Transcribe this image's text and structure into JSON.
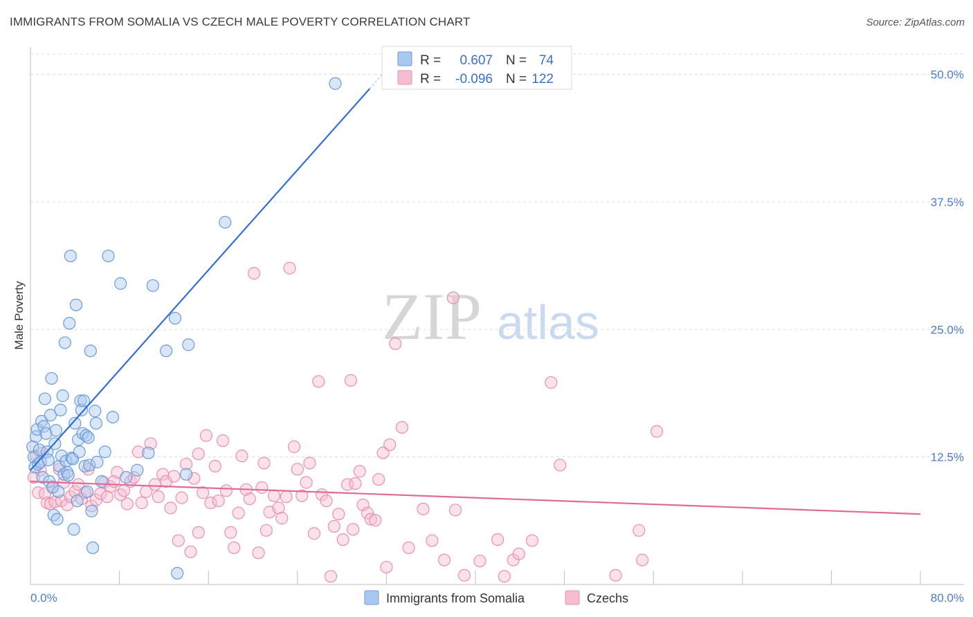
{
  "header": {
    "title": "IMMIGRANTS FROM SOMALIA VS CZECH MALE POVERTY CORRELATION CHART",
    "source": "Source: ZipAtlas.com"
  },
  "watermark": {
    "zip": "ZIP",
    "atlas": "atlas"
  },
  "colors": {
    "somalia_fill": "#a9c8ef",
    "somalia_stroke": "#6a9bd8",
    "somalia_line": "#2f6fd0",
    "czech_fill": "#f6bcd0",
    "czech_stroke": "#e890ae",
    "czech_line": "#e06a97",
    "tick_blue": "#4a7cc9",
    "grid": "#dddddd"
  },
  "legend": {
    "rows": [
      {
        "r_label": "R =",
        "r_value": "0.607",
        "n_label": "N =",
        "n_value": "74"
      },
      {
        "r_label": "R =",
        "r_value": "-0.096",
        "n_label": "N =",
        "n_value": "122"
      }
    ]
  },
  "chart_data": {
    "type": "scatter",
    "title": "IMMIGRANTS FROM SOMALIA VS CZECH MALE POVERTY CORRELATION CHART",
    "xlabel": "",
    "ylabel": "Male Poverty",
    "xlim": [
      0,
      80
    ],
    "ylim": [
      0,
      52
    ],
    "x_tick_labels": [
      "0.0%",
      "80.0%"
    ],
    "y_ticks": [
      12.5,
      25.0,
      37.5,
      50.0
    ],
    "y_tick_labels": [
      "12.5%",
      "25.0%",
      "37.5%",
      "50.0%"
    ],
    "grid": "horizontal dashed",
    "legend_position": "top-center",
    "series": [
      {
        "name": "Immigrants from Somalia",
        "r": 0.607,
        "n": 74,
        "trend": {
          "x": [
            0,
            30.5
          ],
          "y": [
            11.2,
            48.6
          ]
        },
        "points": [
          [
            0.2,
            13.5
          ],
          [
            0.3,
            12.5
          ],
          [
            0.4,
            11.5
          ],
          [
            0.5,
            14.5
          ],
          [
            0.6,
            15.2
          ],
          [
            0.7,
            11.8
          ],
          [
            0.8,
            13.2
          ],
          [
            0.9,
            12.0
          ],
          [
            1.0,
            16.0
          ],
          [
            1.1,
            10.5
          ],
          [
            1.2,
            15.5
          ],
          [
            1.3,
            18.2
          ],
          [
            1.4,
            14.8
          ],
          [
            1.5,
            13.0
          ],
          [
            1.6,
            12.2
          ],
          [
            1.7,
            10.1
          ],
          [
            1.8,
            16.6
          ],
          [
            1.9,
            20.2
          ],
          [
            2.0,
            9.5
          ],
          [
            2.1,
            6.8
          ],
          [
            2.2,
            13.8
          ],
          [
            2.3,
            15.1
          ],
          [
            2.4,
            6.4
          ],
          [
            2.5,
            9.1
          ],
          [
            2.6,
            11.6
          ],
          [
            2.7,
            17.1
          ],
          [
            2.8,
            12.6
          ],
          [
            2.9,
            18.5
          ],
          [
            3.0,
            10.8
          ],
          [
            3.1,
            23.7
          ],
          [
            3.2,
            12.1
          ],
          [
            3.3,
            11.0
          ],
          [
            3.4,
            10.7
          ],
          [
            3.5,
            25.6
          ],
          [
            3.6,
            32.2
          ],
          [
            3.7,
            12.4
          ],
          [
            3.8,
            12.3
          ],
          [
            3.9,
            5.4
          ],
          [
            4.0,
            15.8
          ],
          [
            4.1,
            27.4
          ],
          [
            4.2,
            8.2
          ],
          [
            4.3,
            14.2
          ],
          [
            4.4,
            13.0
          ],
          [
            4.5,
            18.0
          ],
          [
            4.6,
            17.1
          ],
          [
            4.7,
            14.8
          ],
          [
            4.8,
            18.0
          ],
          [
            4.9,
            11.6
          ],
          [
            5.0,
            14.6
          ],
          [
            5.1,
            9.1
          ],
          [
            5.2,
            14.4
          ],
          [
            5.3,
            11.7
          ],
          [
            5.4,
            22.9
          ],
          [
            5.5,
            7.2
          ],
          [
            5.6,
            3.6
          ],
          [
            5.8,
            17.0
          ],
          [
            5.9,
            15.8
          ],
          [
            6.0,
            12.0
          ],
          [
            6.4,
            10.1
          ],
          [
            7.0,
            32.2
          ],
          [
            7.4,
            16.4
          ],
          [
            8.1,
            29.5
          ],
          [
            8.6,
            10.5
          ],
          [
            10.6,
            12.9
          ],
          [
            11.0,
            29.3
          ],
          [
            12.2,
            22.9
          ],
          [
            13.0,
            26.1
          ],
          [
            13.2,
            1.1
          ],
          [
            14.2,
            23.5
          ],
          [
            14.0,
            10.8
          ],
          [
            17.5,
            35.5
          ],
          [
            27.4,
            49.1
          ],
          [
            9.6,
            11.2
          ],
          [
            6.7,
            13.0
          ]
        ]
      },
      {
        "name": "Czechs",
        "r": -0.096,
        "n": 122,
        "trend": {
          "x": [
            0,
            80
          ],
          "y": [
            10.1,
            6.9
          ]
        },
        "points": [
          [
            0.3,
            10.5
          ],
          [
            0.5,
            12.6
          ],
          [
            0.7,
            9.0
          ],
          [
            0.9,
            11.2
          ],
          [
            1.1,
            12.9
          ],
          [
            1.3,
            8.9
          ],
          [
            1.5,
            8.0
          ],
          [
            1.8,
            7.9
          ],
          [
            2.0,
            9.6
          ],
          [
            2.2,
            8.1
          ],
          [
            2.6,
            11.3
          ],
          [
            2.8,
            8.2
          ],
          [
            3.0,
            10.0
          ],
          [
            3.3,
            7.8
          ],
          [
            3.6,
            8.6
          ],
          [
            4.0,
            9.1
          ],
          [
            4.3,
            9.8
          ],
          [
            4.6,
            8.4
          ],
          [
            4.9,
            9.0
          ],
          [
            5.2,
            11.3
          ],
          [
            5.5,
            7.7
          ],
          [
            5.9,
            8.3
          ],
          [
            6.3,
            8.9
          ],
          [
            6.6,
            10.0
          ],
          [
            6.9,
            8.6
          ],
          [
            7.2,
            9.6
          ],
          [
            7.5,
            10.1
          ],
          [
            7.8,
            11.0
          ],
          [
            8.1,
            8.8
          ],
          [
            8.4,
            9.2
          ],
          [
            8.7,
            7.9
          ],
          [
            9.0,
            10.1
          ],
          [
            9.3,
            10.5
          ],
          [
            9.7,
            13.0
          ],
          [
            10.0,
            8.0
          ],
          [
            10.4,
            9.1
          ],
          [
            10.8,
            13.8
          ],
          [
            11.2,
            9.8
          ],
          [
            11.5,
            8.6
          ],
          [
            11.9,
            10.8
          ],
          [
            12.2,
            10.1
          ],
          [
            12.6,
            7.5
          ],
          [
            12.9,
            10.6
          ],
          [
            13.3,
            4.3
          ],
          [
            13.6,
            8.5
          ],
          [
            14.0,
            11.8
          ],
          [
            14.4,
            3.2
          ],
          [
            14.7,
            10.4
          ],
          [
            15.1,
            5.1
          ],
          [
            15.5,
            9.0
          ],
          [
            15.8,
            14.6
          ],
          [
            16.2,
            8.0
          ],
          [
            16.6,
            11.6
          ],
          [
            16.9,
            8.2
          ],
          [
            17.3,
            14.1
          ],
          [
            17.6,
            9.2
          ],
          [
            18.0,
            5.1
          ],
          [
            18.3,
            3.6
          ],
          [
            18.7,
            7.0
          ],
          [
            19.0,
            12.6
          ],
          [
            19.4,
            9.3
          ],
          [
            19.7,
            8.4
          ],
          [
            20.1,
            30.5
          ],
          [
            20.5,
            3.1
          ],
          [
            20.8,
            9.5
          ],
          [
            21.2,
            5.3
          ],
          [
            21.5,
            7.1
          ],
          [
            21.9,
            8.7
          ],
          [
            22.3,
            7.5
          ],
          [
            22.6,
            6.5
          ],
          [
            23.0,
            8.6
          ],
          [
            23.3,
            31.0
          ],
          [
            23.7,
            13.5
          ],
          [
            24.0,
            11.3
          ],
          [
            24.4,
            8.7
          ],
          [
            24.8,
            10.0
          ],
          [
            25.1,
            11.9
          ],
          [
            25.5,
            5.0
          ],
          [
            25.9,
            19.9
          ],
          [
            26.2,
            8.8
          ],
          [
            26.6,
            8.2
          ],
          [
            27.0,
            0.8
          ],
          [
            27.3,
            5.7
          ],
          [
            27.7,
            6.9
          ],
          [
            28.1,
            4.4
          ],
          [
            28.5,
            9.8
          ],
          [
            28.8,
            20.0
          ],
          [
            29.2,
            9.9
          ],
          [
            29.6,
            11.1
          ],
          [
            29.9,
            7.8
          ],
          [
            30.3,
            7.0
          ],
          [
            30.6,
            6.4
          ],
          [
            31.0,
            6.3
          ],
          [
            31.3,
            10.3
          ],
          [
            31.7,
            12.9
          ],
          [
            32.0,
            1.7
          ],
          [
            32.3,
            13.7
          ],
          [
            32.8,
            23.6
          ],
          [
            33.4,
            15.4
          ],
          [
            34.0,
            3.6
          ],
          [
            35.3,
            7.4
          ],
          [
            36.1,
            4.3
          ],
          [
            37.2,
            2.4
          ],
          [
            38.0,
            28.1
          ],
          [
            39.0,
            0.9
          ],
          [
            40.4,
            2.3
          ],
          [
            42.0,
            4.4
          ],
          [
            42.6,
            0.8
          ],
          [
            43.4,
            2.4
          ],
          [
            43.9,
            3.0
          ],
          [
            45.1,
            4.3
          ],
          [
            46.8,
            19.8
          ],
          [
            47.6,
            11.7
          ],
          [
            52.6,
            0.9
          ],
          [
            54.7,
            5.3
          ],
          [
            55.0,
            2.4
          ],
          [
            56.3,
            15.0
          ],
          [
            38.2,
            7.3
          ],
          [
            15.1,
            12.8
          ],
          [
            21.0,
            11.9
          ],
          [
            29.0,
            5.4
          ]
        ]
      }
    ]
  },
  "bottom_legend": [
    {
      "label": "Immigrants from Somalia"
    },
    {
      "label": "Czechs"
    }
  ]
}
